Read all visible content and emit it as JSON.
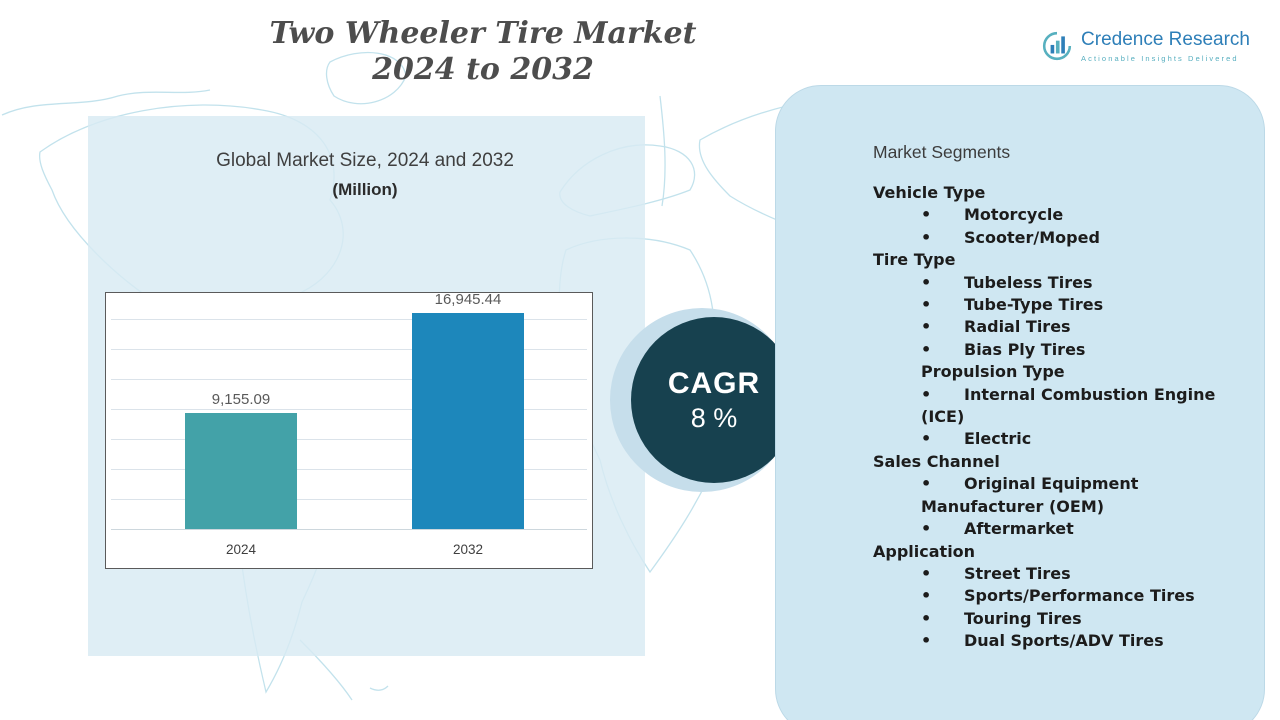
{
  "title": {
    "line1": "Two Wheeler Tire Market",
    "line2": "2024 to 2032"
  },
  "logo": {
    "name": "Credence Research",
    "tagline": "Actionable Insights Delivered",
    "name_color": "#2e7fb8",
    "tagline_color": "#56aebf"
  },
  "chart_section": {
    "heading": "Global Market Size, 2024 and 2032",
    "unit_label": "(Million)"
  },
  "chart_data": {
    "type": "bar",
    "title": "Global Market Size, 2024 and 2032 (Million)",
    "categories": [
      "2024",
      "2032"
    ],
    "values": [
      9155.09,
      16945.44
    ],
    "value_labels": [
      "9,155.09",
      "16,945.44"
    ],
    "bar_colors": [
      "#43a2a8",
      "#1d87bb"
    ],
    "xlabel": "",
    "ylabel": "",
    "ylim": [
      0,
      18000
    ],
    "grid": true,
    "legend": false
  },
  "cagr": {
    "label": "CAGR",
    "value": "8 %",
    "circle_color": "#17414f",
    "halo_color": "#c6deeb",
    "text_color": "#ffffff"
  },
  "segments": {
    "heading": "Market Segments",
    "groups": [
      {
        "label": "Vehicle Type",
        "indented": false,
        "items": [
          "Motorcycle",
          "Scooter/Moped"
        ]
      },
      {
        "label": "Tire Type",
        "indented": false,
        "items": [
          "Tubeless Tires",
          "Tube-Type Tires",
          "Radial Tires",
          "Bias Ply Tires"
        ]
      },
      {
        "label": "Propulsion Type",
        "indented": true,
        "items": [
          "Internal Combustion Engine (ICE)",
          "Electric"
        ]
      },
      {
        "label": "Sales Channel",
        "indented": false,
        "items": [
          "Original Equipment Manufacturer (OEM)",
          "Aftermarket"
        ]
      },
      {
        "label": "Application",
        "indented": false,
        "items": [
          "Street Tires",
          "Sports/Performance Tires",
          "Touring Tires",
          "Dual Sports/ADV Tires"
        ]
      }
    ]
  },
  "panel_colors": {
    "left_panel": "#d8eaf3",
    "right_panel": "#cfe7f2"
  }
}
